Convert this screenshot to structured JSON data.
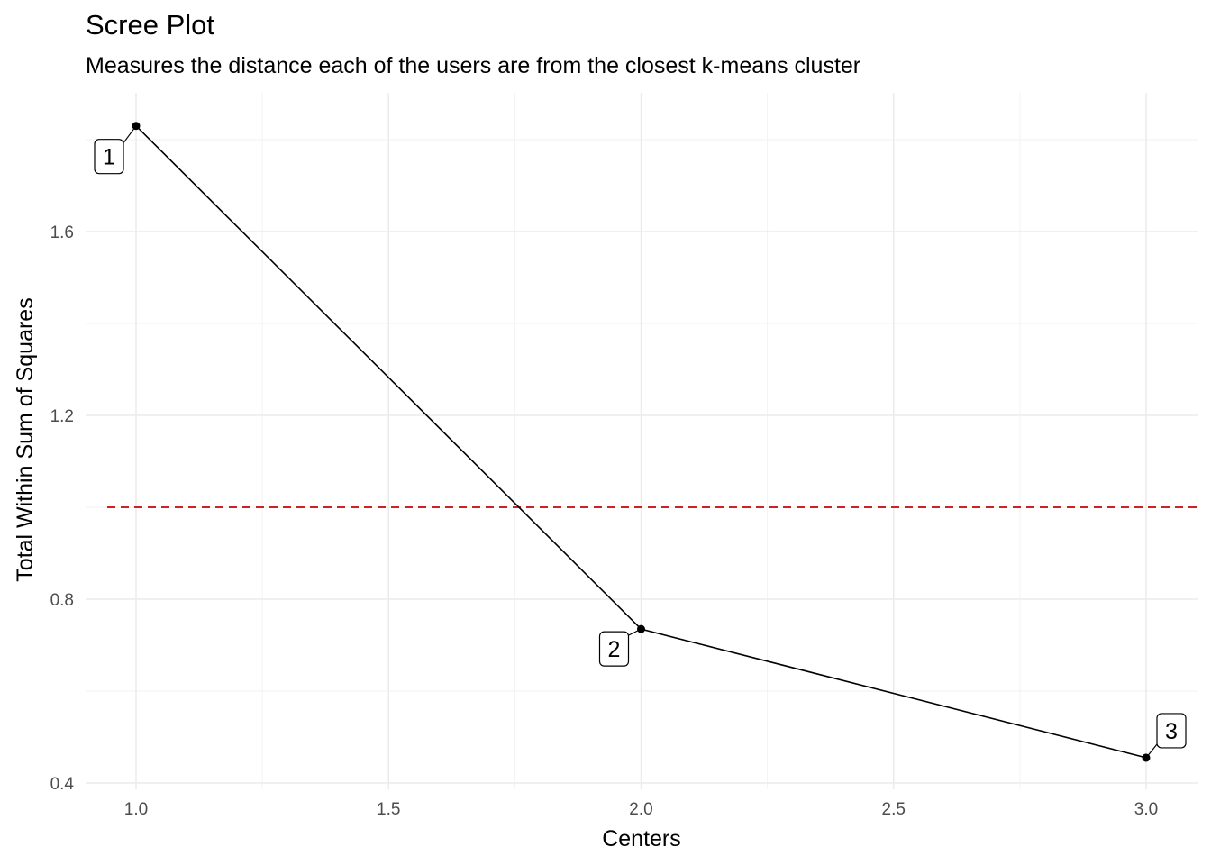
{
  "title": "Scree Plot",
  "subtitle": "Measures the distance each of the users are from the closest k-means cluster",
  "chart_data": {
    "type": "line",
    "title": "Scree Plot",
    "subtitle": "Measures the distance each of the users are from the closest k-means cluster",
    "xlabel": "Centers",
    "ylabel": "Total Within Sum of Squares",
    "xlim": [
      0.9,
      3.1
    ],
    "ylim": [
      0.4,
      1.85
    ],
    "x_ticks": [
      1.0,
      1.5,
      2.0,
      2.5,
      3.0
    ],
    "x_tick_labels": [
      "1.0",
      "1.5",
      "2.0",
      "2.5",
      "3.0"
    ],
    "y_ticks": [
      0.4,
      0.8,
      1.2,
      1.6
    ],
    "y_tick_labels": [
      "0.4",
      "0.8",
      "1.2",
      "1.6"
    ],
    "grid": true,
    "series": [
      {
        "x": [
          1,
          2,
          3
        ],
        "y": [
          1.83,
          0.735,
          0.455
        ],
        "point_labels": [
          "1",
          "2",
          "3"
        ],
        "color": "#000000"
      }
    ],
    "reference_line": {
      "type": "hline",
      "y": 1.0,
      "color": "#cc2222",
      "style": "dashed"
    }
  }
}
